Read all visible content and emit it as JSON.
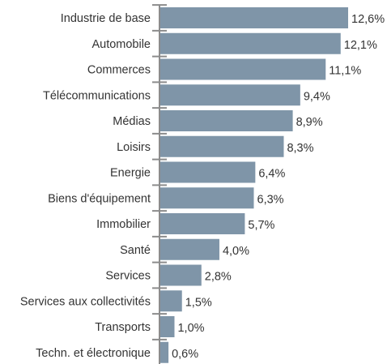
{
  "chart_data": {
    "type": "bar",
    "orientation": "horizontal",
    "categories": [
      "Industrie de base",
      "Automobile",
      "Commerces",
      "Télécommunications",
      "Médias",
      "Loisirs",
      "Energie",
      "Biens d'équipement",
      "Immobilier",
      "Santé",
      "Services",
      "Services aux collectivités",
      "Transports",
      "Techn. et électronique"
    ],
    "values": [
      12.6,
      12.1,
      11.1,
      9.4,
      8.9,
      8.3,
      6.4,
      6.3,
      5.7,
      4.0,
      2.8,
      1.5,
      1.0,
      0.6
    ],
    "value_labels": [
      "12,6%",
      "12,1%",
      "11,1%",
      "9,4%",
      "8,9%",
      "8,3%",
      "6,4%",
      "6,3%",
      "5,7%",
      "4,0%",
      "2,8%",
      "1,5%",
      "1,0%",
      "0,6%"
    ],
    "unit": "%",
    "xlim": [
      0,
      12.6
    ],
    "grid": false,
    "legend": "none",
    "colors": {
      "bar": "#7f95a8",
      "axis": "#8c8c8c",
      "text": "#333333"
    }
  }
}
